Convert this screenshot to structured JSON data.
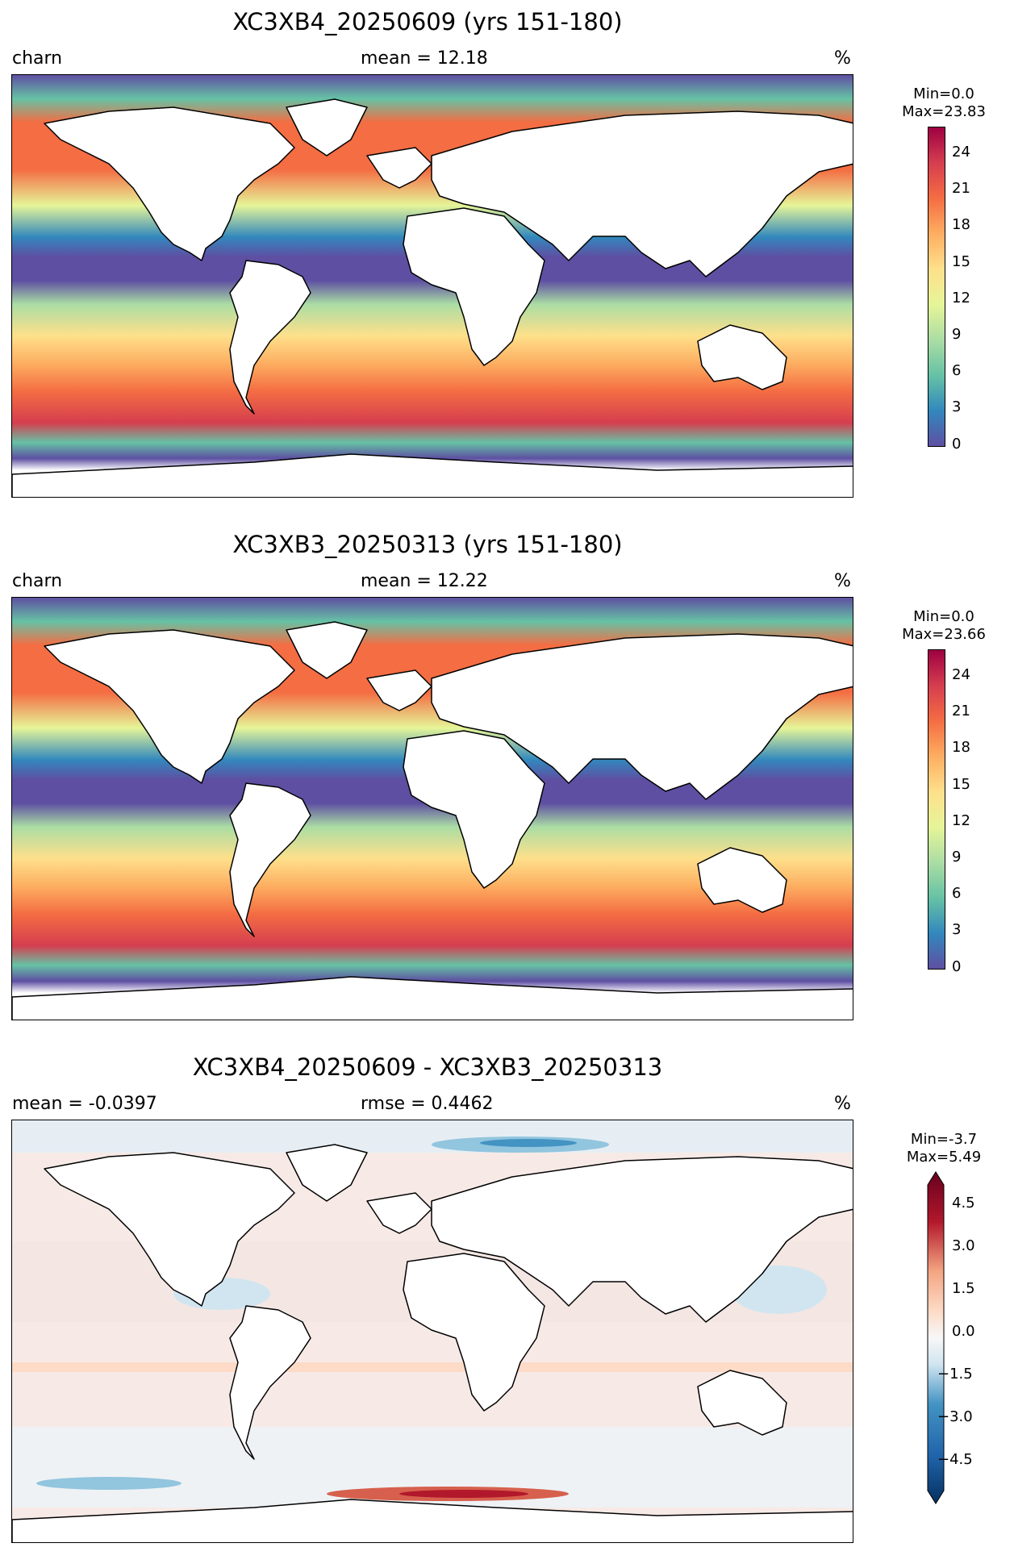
{
  "panels": [
    {
      "title": "XC3XB4_20250609 (yrs 151-180)",
      "left_label": "charn",
      "center_label": "mean = 12.18",
      "right_label": "%",
      "cbar_min": "Min=0.0",
      "cbar_max": "Max=23.83",
      "ticks": [
        "24",
        "21",
        "18",
        "15",
        "12",
        "9",
        "6",
        "3",
        "0"
      ],
      "palette": "spectral"
    },
    {
      "title": "XC3XB3_20250313 (yrs 151-180)",
      "left_label": "charn",
      "center_label": "mean = 12.22",
      "right_label": "%",
      "cbar_min": "Min=0.0",
      "cbar_max": "Max=23.66",
      "ticks": [
        "24",
        "21",
        "18",
        "15",
        "12",
        "9",
        "6",
        "3",
        "0"
      ],
      "palette": "spectral"
    },
    {
      "title": "XC3XB4_20250609 - XC3XB3_20250313",
      "left_label": "mean = -0.0397",
      "center_label": "rmse = 0.4462",
      "right_label": "%",
      "cbar_min": "Min=-3.7",
      "cbar_max": "Max=5.49",
      "ticks": [
        "4.5",
        "3.0",
        "1.5",
        "0.0",
        "−1.5",
        "−3.0",
        "−4.5"
      ],
      "palette": "diverging"
    }
  ],
  "colors": {
    "spectral": [
      "#5e4fa2",
      "#3288bd",
      "#66c2a5",
      "#abdda4",
      "#e6f598",
      "#fee08b",
      "#fdae61",
      "#f46d43",
      "#d53e4f",
      "#9e0142"
    ],
    "diverging": [
      "#053061",
      "#2166ac",
      "#4393c3",
      "#92c5de",
      "#d1e5f0",
      "#f7f7f7",
      "#fddbc7",
      "#f4a582",
      "#d6604d",
      "#b2182b",
      "#67001f"
    ]
  }
}
